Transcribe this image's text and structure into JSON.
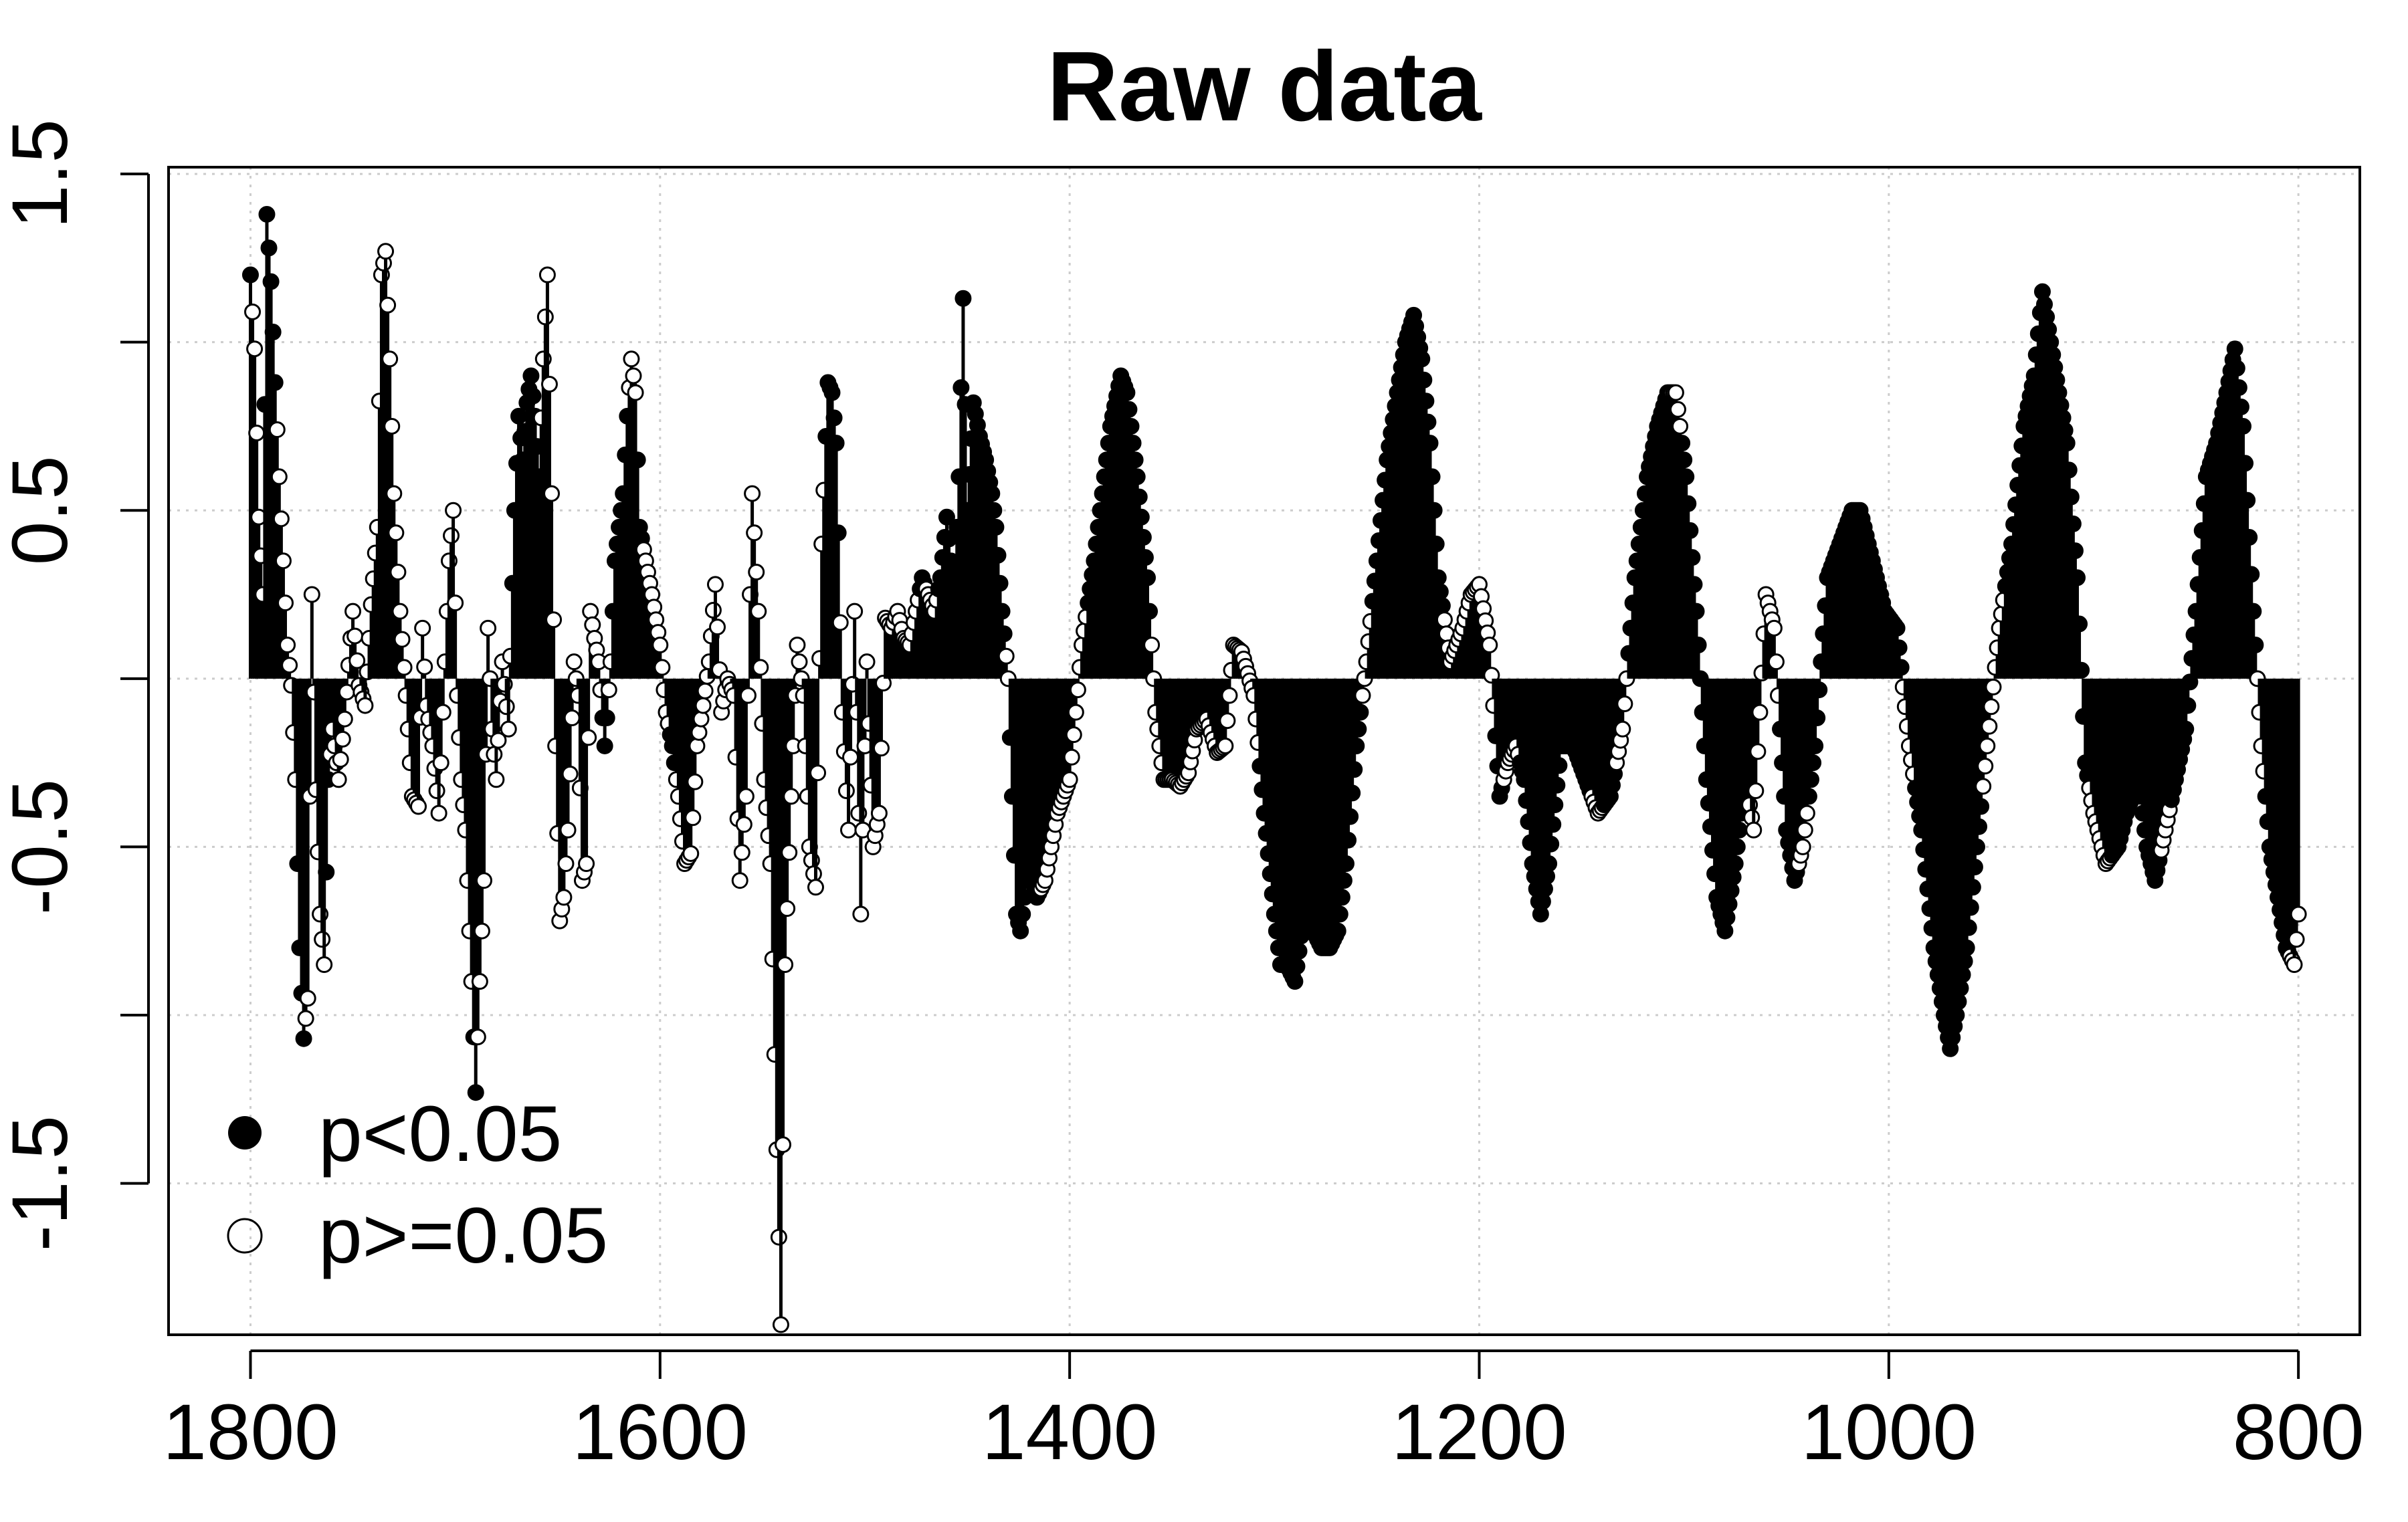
{
  "chart_data": {
    "type": "scatter",
    "title": "Raw data",
    "xlabel": "",
    "ylabel": "",
    "x_reversed": true,
    "xlim": [
      1840,
      770
    ],
    "ylim": [
      -1.95,
      1.52
    ],
    "x_ticks": [
      1800,
      1600,
      1400,
      1200,
      1000,
      800
    ],
    "x_tick_labels": [
      "1800",
      "1600",
      "1400",
      "1200",
      "1000",
      "800"
    ],
    "y_ticks": [
      1.5,
      1.0,
      0.5,
      0.0,
      -0.5,
      -1.0,
      -1.5
    ],
    "y_tick_labels": [
      "1.5",
      "",
      "0.5",
      "",
      "-0.5",
      "",
      "-1.5"
    ],
    "grid": true,
    "baseline": 0,
    "legend": {
      "position": "bottom-left",
      "entries": [
        {
          "label": "p<0.05",
          "marker": "filled-circle"
        },
        {
          "label": "p>=0.05",
          "marker": "open-circle"
        }
      ]
    },
    "series_style": "vertical lines from 0 with circle markers (filled = p<0.05, open = p>=0.05)",
    "anchors": [
      [
        1800,
        1.2,
        1
      ],
      [
        1798,
        0.98,
        0
      ],
      [
        1796,
        0.48,
        0
      ],
      [
        1794,
        0.25,
        0
      ],
      [
        1792,
        1.38,
        1
      ],
      [
        1790,
        1.18,
        1
      ],
      [
        1788,
        0.88,
        1
      ],
      [
        1786,
        0.6,
        0
      ],
      [
        1784,
        0.35,
        0
      ],
      [
        1782,
        0.1,
        0
      ],
      [
        1780,
        -0.02,
        0
      ],
      [
        1778,
        -0.3,
        0
      ],
      [
        1776,
        -0.8,
        1
      ],
      [
        1774,
        -1.07,
        1
      ],
      [
        1772,
        -0.95,
        0
      ],
      [
        1770,
        0.25,
        0
      ],
      [
        1768,
        -0.33,
        0
      ],
      [
        1766,
        -0.7,
        0
      ],
      [
        1764,
        -0.85,
        0
      ],
      [
        1762,
        -0.3,
        1
      ],
      [
        1760,
        -0.15,
        0
      ],
      [
        1757,
        -0.3,
        0
      ],
      [
        1754,
        -0.12,
        0
      ],
      [
        1750,
        0.2,
        0
      ],
      [
        1747,
        -0.02,
        0
      ],
      [
        1744,
        -0.08,
        0
      ],
      [
        1741,
        0.22,
        0
      ],
      [
        1738,
        0.45,
        0
      ],
      [
        1736,
        1.2,
        0
      ],
      [
        1734,
        1.27,
        0
      ],
      [
        1732,
        0.95,
        0
      ],
      [
        1730,
        0.55,
        0
      ],
      [
        1727,
        0.2,
        0
      ],
      [
        1724,
        -0.05,
        0
      ],
      [
        1721,
        -0.35,
        0
      ],
      [
        1718,
        -0.38,
        0
      ],
      [
        1716,
        0.15,
        0
      ],
      [
        1714,
        -0.08,
        0
      ],
      [
        1711,
        -0.2,
        0
      ],
      [
        1708,
        -0.4,
        0
      ],
      [
        1705,
        0.05,
        0
      ],
      [
        1703,
        0.35,
        0
      ],
      [
        1701,
        0.5,
        0
      ],
      [
        1699,
        -0.05,
        0
      ],
      [
        1697,
        -0.3,
        0
      ],
      [
        1695,
        -0.45,
        0
      ],
      [
        1692,
        -0.9,
        0
      ],
      [
        1690,
        -1.23,
        1
      ],
      [
        1688,
        -0.9,
        0
      ],
      [
        1686,
        -0.6,
        0
      ],
      [
        1684,
        0.15,
        0
      ],
      [
        1682,
        -0.15,
        0
      ],
      [
        1680,
        -0.3,
        0
      ],
      [
        1677,
        0.05,
        0
      ],
      [
        1674,
        -0.15,
        0
      ],
      [
        1671,
        0.5,
        1
      ],
      [
        1669,
        0.78,
        1
      ],
      [
        1667,
        0.65,
        1
      ],
      [
        1665,
        0.82,
        1
      ],
      [
        1663,
        0.9,
        1
      ],
      [
        1661,
        0.78,
        1
      ],
      [
        1659,
        0.6,
        1
      ],
      [
        1657,
        0.95,
        0
      ],
      [
        1655,
        1.2,
        0
      ],
      [
        1653,
        0.55,
        0
      ],
      [
        1651,
        -0.2,
        0
      ],
      [
        1649,
        -0.72,
        0
      ],
      [
        1647,
        -0.65,
        0
      ],
      [
        1645,
        -0.45,
        0
      ],
      [
        1642,
        0.05,
        0
      ],
      [
        1640,
        -0.05,
        0
      ],
      [
        1638,
        -0.6,
        0
      ],
      [
        1636,
        -0.55,
        0
      ],
      [
        1634,
        0.2,
        0
      ],
      [
        1632,
        0.12,
        0
      ],
      [
        1630,
        0.05,
        0
      ],
      [
        1627,
        -0.2,
        1
      ],
      [
        1624,
        0.05,
        0
      ],
      [
        1622,
        0.35,
        1
      ],
      [
        1620,
        0.45,
        1
      ],
      [
        1618,
        0.55,
        1
      ],
      [
        1616,
        0.78,
        1
      ],
      [
        1614,
        0.95,
        0
      ],
      [
        1612,
        0.85,
        0
      ],
      [
        1610,
        0.45,
        1
      ],
      [
        1607,
        0.35,
        0
      ],
      [
        1604,
        0.25,
        0
      ],
      [
        1600,
        0.1,
        0
      ],
      [
        1597,
        -0.1,
        0
      ],
      [
        1594,
        -0.2,
        1
      ],
      [
        1591,
        -0.35,
        0
      ],
      [
        1588,
        -0.55,
        0
      ],
      [
        1585,
        -0.52,
        0
      ],
      [
        1582,
        -0.2,
        0
      ],
      [
        1579,
        -0.08,
        0
      ],
      [
        1576,
        0.05,
        0
      ],
      [
        1573,
        0.28,
        0
      ],
      [
        1570,
        -0.1,
        0
      ],
      [
        1567,
        0.0,
        0
      ],
      [
        1564,
        -0.05,
        0
      ],
      [
        1561,
        -0.6,
        0
      ],
      [
        1558,
        -0.35,
        0
      ],
      [
        1555,
        0.55,
        0
      ],
      [
        1552,
        0.2,
        0
      ],
      [
        1549,
        -0.3,
        0
      ],
      [
        1546,
        -0.55,
        0
      ],
      [
        1543,
        -1.4,
        0
      ],
      [
        1541,
        -1.92,
        0
      ],
      [
        1539,
        -0.85,
        0
      ],
      [
        1536,
        -0.35,
        0
      ],
      [
        1533,
        0.1,
        0
      ],
      [
        1530,
        -0.05,
        0
      ],
      [
        1527,
        -0.5,
        0
      ],
      [
        1524,
        -0.62,
        0
      ],
      [
        1521,
        0.4,
        0
      ],
      [
        1518,
        0.88,
        1
      ],
      [
        1516,
        0.85,
        1
      ],
      [
        1514,
        0.7,
        1
      ],
      [
        1511,
        -0.1,
        0
      ],
      [
        1508,
        -0.45,
        0
      ],
      [
        1505,
        0.2,
        0
      ],
      [
        1502,
        -0.7,
        0
      ],
      [
        1499,
        0.05,
        0
      ],
      [
        1496,
        -0.5,
        0
      ],
      [
        1493,
        -0.4,
        0
      ],
      [
        1490,
        0.18,
        0
      ],
      [
        1487,
        0.15,
        0
      ],
      [
        1484,
        0.2,
        0
      ],
      [
        1481,
        0.12,
        0
      ],
      [
        1478,
        0.1,
        0
      ],
      [
        1475,
        0.2,
        0
      ],
      [
        1472,
        0.3,
        1
      ],
      [
        1469,
        0.25,
        0
      ],
      [
        1466,
        0.2,
        0
      ],
      [
        1463,
        0.3,
        1
      ],
      [
        1460,
        0.48,
        1
      ],
      [
        1458,
        0.35,
        1
      ],
      [
        1456,
        0.3,
        1
      ],
      [
        1454,
        0.6,
        1
      ],
      [
        1452,
        1.13,
        1
      ],
      [
        1450,
        0.5,
        1
      ],
      [
        1447,
        0.82,
        1
      ],
      [
        1444,
        0.72,
        1
      ],
      [
        1441,
        0.65,
        1
      ],
      [
        1438,
        0.55,
        1
      ],
      [
        1436,
        0.45,
        1
      ],
      [
        1433,
        0.2,
        1
      ],
      [
        1430,
        0.0,
        0
      ],
      [
        1428,
        -0.35,
        1
      ],
      [
        1426,
        -0.7,
        1
      ],
      [
        1424,
        -0.75,
        1
      ],
      [
        1420,
        -0.55,
        1
      ],
      [
        1416,
        -0.65,
        1
      ],
      [
        1412,
        -0.6,
        0
      ],
      [
        1406,
        -0.4,
        0
      ],
      [
        1400,
        -0.3,
        0
      ],
      [
        1394,
        0.1,
        0
      ],
      [
        1388,
        0.35,
        1
      ],
      [
        1384,
        0.55,
        1
      ],
      [
        1380,
        0.75,
        1
      ],
      [
        1375,
        0.9,
        1
      ],
      [
        1372,
        0.85,
        1
      ],
      [
        1367,
        0.6,
        1
      ],
      [
        1362,
        0.3,
        1
      ],
      [
        1358,
        -0.1,
        0
      ],
      [
        1354,
        -0.3,
        0
      ],
      [
        1350,
        -0.3,
        0
      ],
      [
        1346,
        -0.32,
        0
      ],
      [
        1342,
        -0.28,
        0
      ],
      [
        1338,
        -0.15,
        0
      ],
      [
        1333,
        -0.12,
        0
      ],
      [
        1328,
        -0.22,
        0
      ],
      [
        1324,
        -0.2,
        0
      ],
      [
        1320,
        0.1,
        0
      ],
      [
        1316,
        0.08,
        0
      ],
      [
        1310,
        -0.05,
        0
      ],
      [
        1305,
        -0.4,
        1
      ],
      [
        1300,
        -0.7,
        1
      ],
      [
        1297,
        -0.85,
        1
      ],
      [
        1294,
        -0.85,
        1
      ],
      [
        1290,
        -0.9,
        1
      ],
      [
        1286,
        -0.72,
        1
      ],
      [
        1281,
        -0.75,
        1
      ],
      [
        1277,
        -0.8,
        1
      ],
      [
        1273,
        -0.8,
        1
      ],
      [
        1269,
        -0.75,
        1
      ],
      [
        1265,
        -0.55,
        1
      ],
      [
        1260,
        -0.2,
        1
      ],
      [
        1255,
        0.05,
        0
      ],
      [
        1250,
        0.35,
        1
      ],
      [
        1245,
        0.65,
        1
      ],
      [
        1240,
        0.85,
        1
      ],
      [
        1236,
        1.0,
        1
      ],
      [
        1232,
        1.08,
        1
      ],
      [
        1228,
        0.95,
        1
      ],
      [
        1224,
        0.7,
        1
      ],
      [
        1220,
        0.3,
        1
      ],
      [
        1214,
        0.05,
        0
      ],
      [
        1208,
        0.15,
        0
      ],
      [
        1204,
        0.25,
        0
      ],
      [
        1200,
        0.28,
        0
      ],
      [
        1195,
        0.1,
        0
      ],
      [
        1190,
        -0.35,
        1
      ],
      [
        1186,
        -0.25,
        0
      ],
      [
        1182,
        -0.2,
        0
      ],
      [
        1178,
        -0.3,
        1
      ],
      [
        1174,
        -0.55,
        1
      ],
      [
        1170,
        -0.7,
        1
      ],
      [
        1166,
        -0.55,
        1
      ],
      [
        1160,
        -0.2,
        1
      ],
      [
        1154,
        -0.2,
        1
      ],
      [
        1148,
        -0.3,
        1
      ],
      [
        1142,
        -0.4,
        0
      ],
      [
        1136,
        -0.35,
        1
      ],
      [
        1130,
        -0.15,
        0
      ],
      [
        1124,
        0.3,
        1
      ],
      [
        1118,
        0.6,
        1
      ],
      [
        1113,
        0.75,
        1
      ],
      [
        1108,
        0.85,
        1
      ],
      [
        1104,
        0.85,
        0
      ],
      [
        1099,
        0.6,
        1
      ],
      [
        1094,
        0.2,
        1
      ],
      [
        1089,
        -0.3,
        1
      ],
      [
        1084,
        -0.65,
        1
      ],
      [
        1080,
        -0.75,
        1
      ],
      [
        1075,
        -0.55,
        1
      ],
      [
        1070,
        -0.3,
        1
      ],
      [
        1066,
        -0.45,
        0
      ],
      [
        1060,
        0.25,
        0
      ],
      [
        1056,
        0.15,
        0
      ],
      [
        1050,
        -0.45,
        1
      ],
      [
        1046,
        -0.6,
        1
      ],
      [
        1042,
        -0.5,
        0
      ],
      [
        1036,
        -0.2,
        1
      ],
      [
        1030,
        0.3,
        1
      ],
      [
        1024,
        0.4,
        1
      ],
      [
        1018,
        0.5,
        1
      ],
      [
        1014,
        0.5,
        1
      ],
      [
        1008,
        0.35,
        1
      ],
      [
        1002,
        0.2,
        1
      ],
      [
        996,
        0.15,
        1
      ],
      [
        990,
        -0.2,
        0
      ],
      [
        984,
        -0.45,
        1
      ],
      [
        978,
        -0.8,
        1
      ],
      [
        973,
        -1.0,
        1
      ],
      [
        970,
        -1.1,
        1
      ],
      [
        967,
        -1.0,
        1
      ],
      [
        962,
        -0.8,
        1
      ],
      [
        957,
        -0.5,
        1
      ],
      [
        952,
        -0.2,
        0
      ],
      [
        946,
        0.15,
        0
      ],
      [
        940,
        0.4,
        1
      ],
      [
        934,
        0.75,
        1
      ],
      [
        929,
        0.9,
        1
      ],
      [
        925,
        1.15,
        1
      ],
      [
        921,
        1.0,
        1
      ],
      [
        917,
        0.85,
        1
      ],
      [
        913,
        0.7,
        1
      ],
      [
        908,
        0.3,
        1
      ],
      [
        904,
        -0.25,
        1
      ],
      [
        900,
        -0.4,
        0
      ],
      [
        894,
        -0.55,
        0
      ],
      [
        888,
        -0.5,
        1
      ],
      [
        884,
        -0.4,
        1
      ],
      [
        878,
        -0.3,
        1
      ],
      [
        874,
        -0.5,
        1
      ],
      [
        870,
        -0.6,
        1
      ],
      [
        865,
        -0.45,
        0
      ],
      [
        860,
        -0.3,
        1
      ],
      [
        855,
        -0.15,
        1
      ],
      [
        850,
        0.2,
        1
      ],
      [
        845,
        0.6,
        1
      ],
      [
        840,
        0.7,
        1
      ],
      [
        835,
        0.85,
        1
      ],
      [
        831,
        0.98,
        1
      ],
      [
        827,
        0.75,
        1
      ],
      [
        822,
        0.2,
        1
      ],
      [
        818,
        -0.2,
        0
      ],
      [
        814,
        -0.5,
        1
      ],
      [
        810,
        -0.65,
        1
      ],
      [
        806,
        -0.8,
        1
      ],
      [
        802,
        -0.85,
        0
      ],
      [
        800,
        -0.7,
        0
      ]
    ]
  }
}
